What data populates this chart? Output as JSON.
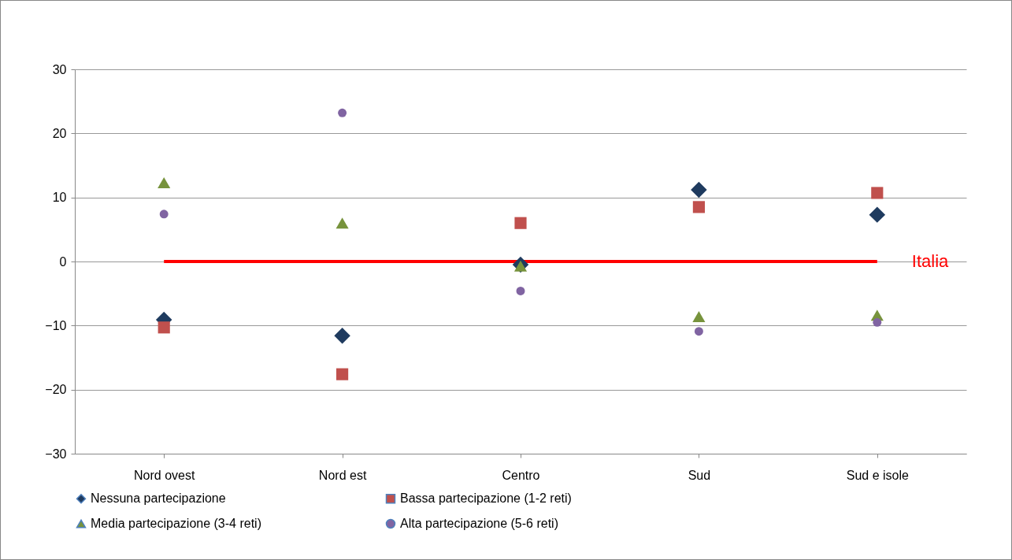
{
  "chart_data": {
    "type": "scatter",
    "categories": [
      "Nord ovest",
      "Nord est",
      "Centro",
      "Sud",
      "Sud e isole"
    ],
    "series": [
      {
        "name": "Nessuna partecipazione",
        "color": "#1f3b5f",
        "marker": "diamond",
        "values": [
          -9.1,
          -11.6,
          -0.5,
          11.2,
          7.3
        ]
      },
      {
        "name": "Bassa partecipazione  (1-2 reti)",
        "color": "#c0504d",
        "marker": "square",
        "values": [
          -10.3,
          -17.6,
          6.0,
          8.5,
          10.7
        ]
      },
      {
        "name": "Media partecipazione  (3-4 reti)",
        "color": "#77933c",
        "marker": "triangle",
        "values": [
          12.3,
          6.0,
          -0.7,
          -8.6,
          -8.4
        ]
      },
      {
        "name": "Alta partecipazione  (5-6 reti)",
        "color": "#8064a2",
        "marker": "circle",
        "values": [
          7.4,
          23.2,
          -4.6,
          -10.9,
          -9.5
        ]
      }
    ],
    "ylim": [
      -30,
      30
    ],
    "yticks": [
      -30,
      -20,
      -10,
      0,
      10,
      20,
      30
    ],
    "grid": "y",
    "legend": "bottom",
    "ref_lines": [
      {
        "axis": "y",
        "value": 0,
        "label": "Italia",
        "color": "#ff0000"
      }
    ]
  }
}
